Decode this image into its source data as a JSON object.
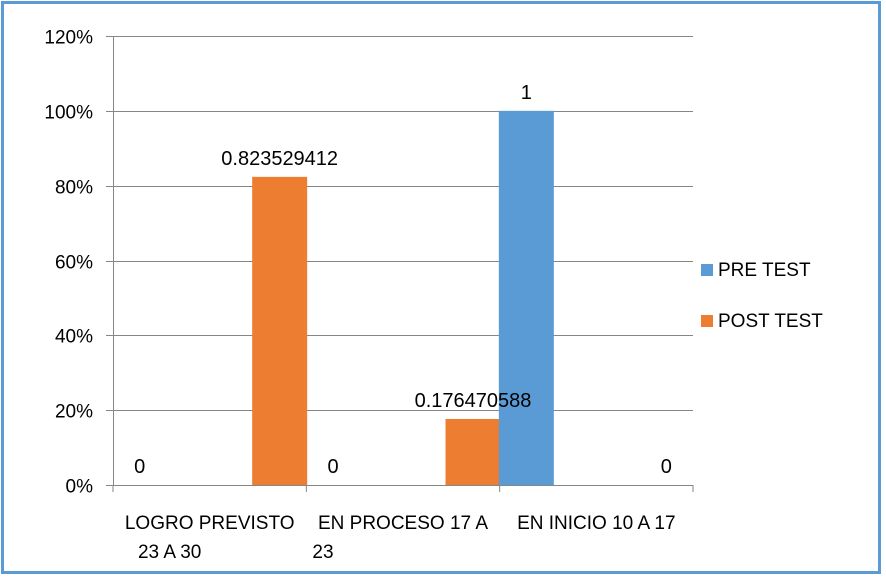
{
  "chart_data": {
    "type": "bar",
    "categories": [
      [
        "LOGRO PREVISTO",
        "23 A 30"
      ],
      [
        "EN PROCESO 17 A",
        "23"
      ],
      [
        "EN INICIO 10 A 17",
        ""
      ]
    ],
    "series": [
      {
        "name": "PRE TEST",
        "values": [
          0,
          0,
          1
        ],
        "labels": [
          "0",
          "0",
          "1"
        ],
        "color": "#5b9bd5"
      },
      {
        "name": "POST TEST",
        "values": [
          0.823529412,
          0.176470588,
          0
        ],
        "labels": [
          "0.823529412",
          "0.176470588",
          "0"
        ],
        "color": "#ed7d31"
      }
    ],
    "ylim": [
      0,
      1.2
    ],
    "yticks": [
      0,
      0.2,
      0.4,
      0.6,
      0.8,
      1.0,
      1.2
    ],
    "ytick_labels": [
      "0%",
      "20%",
      "40%",
      "60%",
      "80%",
      "100%",
      "120%"
    ],
    "grid": true,
    "legend_position": "right",
    "title": "",
    "xlabel": "",
    "ylabel": ""
  },
  "colors": {
    "frame_border": "#5b9bd5",
    "gridline": "#868686",
    "axis": "#868686"
  }
}
